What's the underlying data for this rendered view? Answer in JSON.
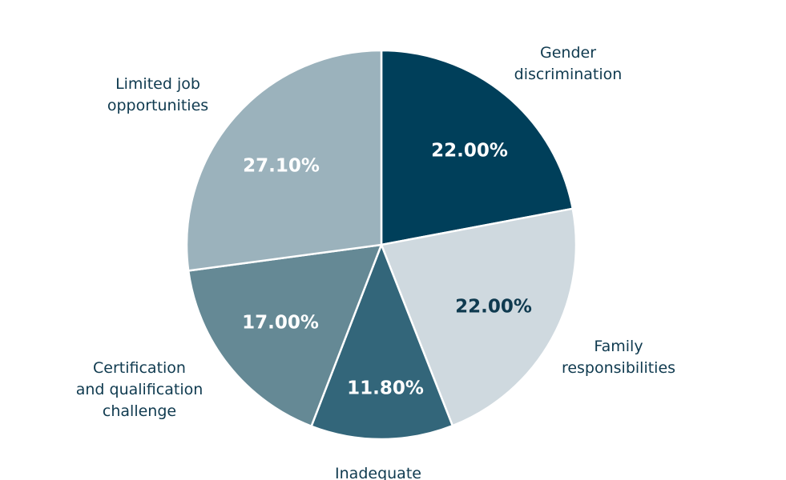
{
  "chart_data": {
    "type": "pie",
    "categories": [
      "Gender discrimination",
      "Family responsibilities",
      "Inadequate",
      "Certification and qualification challenge",
      "Limited job opportunities"
    ],
    "values": [
      22.0,
      22.0,
      11.8,
      17.0,
      27.1
    ],
    "data_labels": [
      "22.00%",
      "22.00%",
      "11.80%",
      "17.00%",
      "27.10%"
    ],
    "category_label_lines": [
      [
        "Gender",
        "discrimination"
      ],
      [
        "Family",
        "responsibilities"
      ],
      [
        "Inadequate"
      ],
      [
        "Certification",
        "and qualification",
        "challenge"
      ],
      [
        "Limited job",
        "opportunities"
      ]
    ],
    "colors": [
      "#003f5a",
      "#cfd9df",
      "#33667a",
      "#658995",
      "#9bb2bc"
    ],
    "value_label_colors": [
      "#ffffff",
      "#0f3a4f",
      "#ffffff",
      "#ffffff",
      "#ffffff"
    ],
    "start_angle": "top (12 o'clock)",
    "direction": "clockwise",
    "legend": "none"
  }
}
